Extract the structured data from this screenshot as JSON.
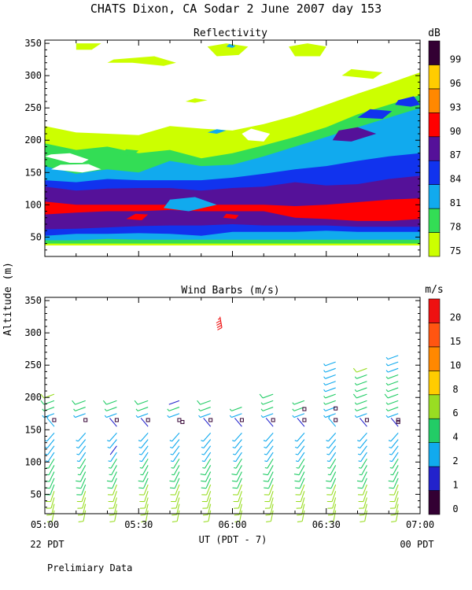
{
  "title": "CHATS Dixon, CA  Sodar    2 June 2007   day 153",
  "ylabel": "Altitude (m)",
  "xlabel": "UT  (PDT - 7)",
  "left_note": "22 PDT",
  "right_note": "00 PDT",
  "footer": "Prelimiary Data",
  "x_ticks": [
    "05:00",
    "05:30",
    "06:00",
    "06:30",
    "07:00"
  ],
  "y_ticks": [
    "50",
    "100",
    "150",
    "200",
    "250",
    "300",
    "350"
  ],
  "colors": {
    "reflectivity": [
      "#ccff00",
      "#33dd55",
      "#11aaee",
      "#1133ee",
      "#551199",
      "#ff0000",
      "#ff8800",
      "#ffcc00",
      "#330033"
    ],
    "wind": [
      "#330033",
      "#2222cc",
      "#11aaee",
      "#22cc66",
      "#99dd22",
      "#ffcc00",
      "#ff8800",
      "#ff5511",
      "#ee1111"
    ]
  },
  "chart_data": [
    {
      "type": "heatmap",
      "title": "Reflectivity",
      "colorbar_title": "dB",
      "colorbar_ticks": [
        "75",
        "78",
        "81",
        "84",
        "87",
        "90",
        "93",
        "96",
        "99"
      ],
      "xlim": [
        0,
        120
      ],
      "ylim": [
        20,
        355
      ],
      "time_minutes": [
        0,
        10,
        20,
        30,
        40,
        50,
        60,
        70,
        80,
        90,
        100,
        110,
        120
      ],
      "layers": [
        {
          "level": 75,
          "bottom": [
            37,
            37,
            37,
            37,
            37,
            37,
            37,
            37,
            37,
            37,
            37,
            37,
            37
          ],
          "top": [
            222,
            212,
            210,
            208,
            222,
            218,
            215,
            225,
            238,
            255,
            272,
            288,
            305
          ]
        },
        {
          "level": 78,
          "bottom": [
            40,
            40,
            40,
            40,
            40,
            40,
            40,
            40,
            40,
            40,
            40,
            40,
            40
          ],
          "top": [
            195,
            185,
            190,
            180,
            185,
            172,
            180,
            192,
            205,
            220,
            240,
            255,
            270
          ]
        },
        {
          "level": 81,
          "bottom": [
            45,
            45,
            47,
            46,
            46,
            46,
            46,
            46,
            46,
            46,
            46,
            46,
            46
          ],
          "top": [
            160,
            148,
            155,
            150,
            168,
            160,
            162,
            175,
            190,
            205,
            220,
            235,
            250
          ]
        },
        {
          "level": 84,
          "bottom": [
            52,
            55,
            55,
            56,
            55,
            52,
            58,
            58,
            58,
            60,
            58,
            58,
            58
          ],
          "top": [
            138,
            135,
            140,
            138,
            138,
            138,
            142,
            148,
            155,
            160,
            168,
            175,
            180
          ]
        },
        {
          "level": 87,
          "bottom": [
            62,
            63,
            65,
            67,
            68,
            68,
            70,
            68,
            68,
            68,
            66,
            66,
            66
          ],
          "top": [
            128,
            122,
            125,
            126,
            126,
            122,
            126,
            128,
            135,
            130,
            132,
            140,
            145
          ]
        },
        {
          "level": 90,
          "bottom": [
            85,
            88,
            90,
            90,
            92,
            90,
            90,
            90,
            80,
            78,
            75,
            75,
            78
          ],
          "top": [
            105,
            100,
            100,
            100,
            100,
            100,
            100,
            100,
            98,
            100,
            104,
            108,
            110
          ]
        }
      ],
      "extra_blobs": [
        {
          "level": 75,
          "t": [
            10,
            15,
            18,
            10
          ],
          "alt": [
            340,
            340,
            350,
            350
          ]
        },
        {
          "level": 75,
          "t": [
            20,
            28,
            38,
            42,
            35,
            22
          ],
          "alt": [
            320,
            320,
            315,
            320,
            330,
            325
          ]
        },
        {
          "level": 75,
          "t": [
            55,
            62,
            65,
            58,
            52
          ],
          "alt": [
            330,
            332,
            345,
            350,
            345
          ]
        },
        {
          "level": 75,
          "t": [
            80,
            88,
            90,
            84,
            78
          ],
          "alt": [
            330,
            330,
            345,
            350,
            345
          ]
        },
        {
          "level": 75,
          "t": [
            95,
            105,
            108,
            98
          ],
          "alt": [
            300,
            295,
            305,
            310
          ]
        },
        {
          "level": 75,
          "t": [
            45,
            48,
            52,
            48
          ],
          "alt": [
            260,
            258,
            262,
            265
          ]
        },
        {
          "level": 81,
          "t": [
            58,
            60,
            61,
            59
          ],
          "alt": [
            345,
            343,
            346,
            349
          ]
        },
        {
          "level": 78,
          "t": [
            24,
            28,
            30,
            26
          ],
          "alt": [
            178,
            176,
            184,
            186
          ]
        },
        {
          "level": 81,
          "t": [
            52,
            55,
            58,
            55
          ],
          "alt": [
            212,
            210,
            215,
            217
          ]
        },
        {
          "level": 87,
          "t": [
            92,
            98,
            106,
            100,
            94
          ],
          "alt": [
            200,
            198,
            210,
            220,
            215
          ]
        },
        {
          "level": 84,
          "t": [
            100,
            108,
            111,
            104
          ],
          "alt": [
            235,
            233,
            245,
            248
          ]
        },
        {
          "level": 84,
          "t": [
            112,
            117,
            120,
            118,
            113
          ],
          "alt": [
            255,
            252,
            255,
            268,
            262
          ]
        },
        {
          "level": 90,
          "t": [
            26,
            31,
            33,
            29
          ],
          "alt": [
            78,
            76,
            85,
            86
          ]
        },
        {
          "level": 90,
          "t": [
            57,
            61,
            62,
            58
          ],
          "alt": [
            80,
            78,
            84,
            86
          ]
        },
        {
          "level": 81,
          "t": [
            38,
            46,
            55,
            48,
            40
          ],
          "alt": [
            95,
            90,
            100,
            112,
            108
          ]
        }
      ],
      "holes": [
        {
          "t": [
            0,
            8,
            12,
            14,
            8,
            2
          ],
          "alt": [
            175,
            165,
            165,
            170,
            180,
            178
          ]
        },
        {
          "t": [
            2,
            12,
            18,
            14,
            5
          ],
          "alt": [
            155,
            150,
            155,
            163,
            162
          ]
        },
        {
          "t": [
            65,
            70,
            72,
            66,
            63
          ],
          "alt": [
            200,
            198,
            210,
            218,
            210
          ]
        }
      ]
    },
    {
      "type": "scatter",
      "title": "Wind Barbs (m/s)",
      "colorbar_title": "m/s",
      "colorbar_ticks": [
        "0",
        "1",
        "2",
        "4",
        "6",
        "8",
        "10",
        "15",
        "20"
      ],
      "xlim": [
        0,
        120
      ],
      "ylim": [
        20,
        355
      ],
      "x": [
        3,
        13,
        23,
        33,
        43,
        53,
        63,
        73,
        83,
        93,
        103,
        113
      ],
      "altitudes": [
        25,
        35,
        45,
        55,
        65,
        75,
        85,
        95,
        105,
        115,
        125,
        135,
        145,
        155,
        165,
        175,
        185,
        195,
        205,
        215,
        225,
        235,
        245,
        255,
        265
      ],
      "top_altitude": [
        215,
        200,
        200,
        200,
        200,
        200,
        200,
        215,
        200,
        260,
        255,
        275
      ],
      "speeds": [
        [
          6,
          6,
          6,
          6,
          5,
          5,
          5,
          4,
          4,
          3,
          3,
          2,
          2,
          2,
          0,
          3,
          4,
          5,
          6,
          0,
          0,
          0,
          0,
          0,
          0
        ],
        [
          6,
          6,
          6,
          6,
          5,
          5,
          5,
          4,
          4,
          3,
          3,
          2,
          2,
          0,
          0,
          3,
          4,
          5,
          0,
          0,
          0,
          0,
          0,
          0,
          0
        ],
        [
          6,
          6,
          6,
          6,
          6,
          5,
          5,
          4,
          4,
          3,
          1,
          2,
          2,
          1,
          0,
          3,
          4,
          5,
          0,
          0,
          0,
          0,
          0,
          0,
          0
        ],
        [
          6,
          6,
          6,
          6,
          6,
          5,
          5,
          4,
          4,
          3,
          3,
          2,
          2,
          1,
          0,
          3,
          4,
          5,
          0,
          0,
          0,
          0,
          0,
          0,
          0
        ],
        [
          6,
          6,
          6,
          6,
          6,
          5,
          5,
          4,
          4,
          3,
          3,
          2,
          2,
          0,
          0,
          3,
          4,
          1,
          0,
          0,
          0,
          0,
          0,
          0,
          0
        ],
        [
          6,
          6,
          6,
          6,
          6,
          5,
          5,
          5,
          4,
          3,
          3,
          2,
          2,
          1,
          0,
          3,
          4,
          5,
          0,
          0,
          0,
          0,
          0,
          0,
          0
        ],
        [
          6,
          6,
          6,
          6,
          6,
          5,
          5,
          5,
          4,
          3,
          3,
          2,
          2,
          1,
          0,
          3,
          4,
          0,
          0,
          0,
          0,
          0,
          0,
          0,
          0
        ],
        [
          6,
          6,
          6,
          6,
          6,
          5,
          5,
          5,
          4,
          3,
          3,
          2,
          2,
          1,
          0,
          3,
          4,
          4,
          5,
          0,
          0,
          0,
          0,
          0,
          0
        ],
        [
          6,
          6,
          6,
          6,
          6,
          5,
          5,
          5,
          4,
          3,
          3,
          2,
          2,
          1,
          0,
          3,
          4,
          4,
          0,
          0,
          0,
          0,
          0,
          0,
          0
        ],
        [
          6,
          6,
          6,
          6,
          6,
          5,
          5,
          4,
          4,
          3,
          3,
          2,
          2,
          2,
          0,
          3,
          3,
          4,
          4,
          3,
          3,
          3,
          3,
          2,
          0
        ],
        [
          6,
          6,
          6,
          6,
          6,
          5,
          5,
          4,
          4,
          3,
          3,
          2,
          2,
          1,
          0,
          3,
          4,
          4,
          5,
          4,
          4,
          4,
          6,
          0,
          0
        ],
        [
          6,
          6,
          6,
          6,
          6,
          5,
          5,
          4,
          4,
          3,
          3,
          2,
          2,
          1,
          0,
          3,
          4,
          4,
          5,
          4,
          4,
          4,
          3,
          3,
          3
        ]
      ],
      "special": [
        {
          "t": 56,
          "alt": 325,
          "speed": 22
        },
        {
          "t": 44,
          "alt": 162,
          "speed": 0
        },
        {
          "t": 83,
          "alt": 182,
          "speed": 0
        },
        {
          "t": 93,
          "alt": 183,
          "speed": 0
        },
        {
          "t": 113,
          "alt": 162,
          "speed": 0
        }
      ]
    }
  ]
}
